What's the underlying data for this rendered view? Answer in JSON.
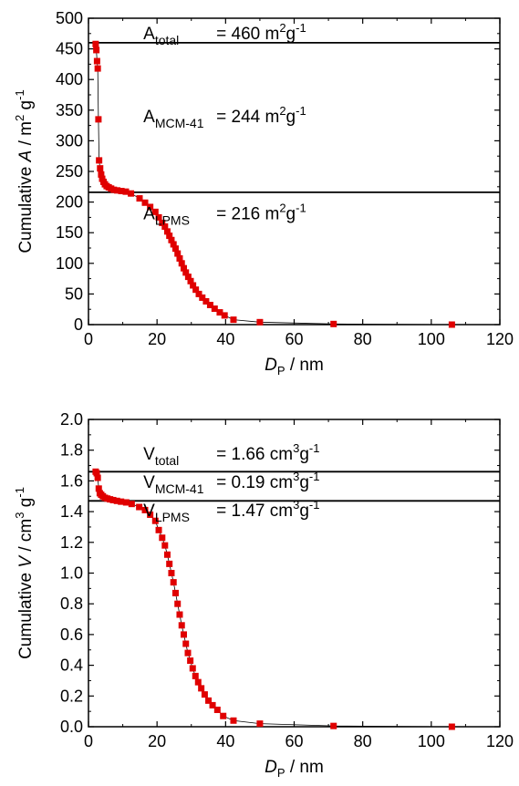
{
  "chart_data": [
    {
      "type": "scatter",
      "xlabel": {
        "var": "D",
        "sub": "P",
        "unit": " / nm"
      },
      "ylabel": {
        "prefix": "Cumulative ",
        "var": "A",
        "unit": " / m",
        "sup": "2",
        "tail": " g",
        "sup2": "-1"
      },
      "xlim": [
        0,
        120
      ],
      "ylim": [
        0,
        500
      ],
      "xticks": [
        0,
        20,
        40,
        60,
        80,
        100,
        120
      ],
      "yticks": [
        0,
        50,
        100,
        150,
        200,
        250,
        300,
        350,
        400,
        450,
        500
      ],
      "marker_color": "#e00000",
      "line_color": "#000000",
      "hlines": [
        460,
        216
      ],
      "annotations": [
        {
          "main": "A",
          "sub": "total",
          "value": "= 460 m",
          "sup": "2",
          "unit": "g",
          "sup2": "-1",
          "x": 16,
          "y": 466
        },
        {
          "main": "A",
          "sub": "MCM-41",
          "value": "= 244 m",
          "sup": "2",
          "unit": "g",
          "sup2": "-1",
          "x": 16,
          "y": 330
        },
        {
          "main": "A",
          "sub": "LPMS",
          "value": "= 216 m",
          "sup": "2",
          "unit": "g",
          "sup2": "-1",
          "x": 16,
          "y": 172
        }
      ],
      "x": [
        2.1,
        2.3,
        2.5,
        2.7,
        2.9,
        3.1,
        3.4,
        3.7,
        4.0,
        4.4,
        4.8,
        5.3,
        5.9,
        6.6,
        7.4,
        8.4,
        9.6,
        10.9,
        12.4,
        14.9,
        16.5,
        18.0,
        19.5,
        20.5,
        21.5,
        22.3,
        23.0,
        23.6,
        24.2,
        24.8,
        25.4,
        26.0,
        26.6,
        27.2,
        27.8,
        28.4,
        29.1,
        29.8,
        30.5,
        31.3,
        32.2,
        33.2,
        34.3,
        35.5,
        36.8,
        38.3,
        39.7,
        42.3,
        50.0,
        71.5,
        106.0
      ],
      "y": [
        458,
        448,
        430,
        418,
        335,
        268,
        255,
        245,
        238,
        233,
        229,
        226,
        224,
        222,
        220,
        219,
        218,
        217,
        214,
        206,
        199,
        192,
        184,
        175,
        166,
        160,
        152,
        145,
        138,
        131,
        124,
        116,
        108,
        100,
        92,
        85,
        78,
        71,
        64,
        57,
        50,
        44,
        38,
        32,
        26,
        20,
        15,
        8,
        4,
        1,
        0
      ]
    },
    {
      "type": "scatter",
      "xlabel": {
        "var": "D",
        "sub": "P",
        "unit": " / nm"
      },
      "ylabel": {
        "prefix": "Cumulative ",
        "var": "V",
        "unit": " / cm",
        "sup": "3",
        "tail": " g",
        "sup2": "-1"
      },
      "xlim": [
        0,
        120
      ],
      "ylim": [
        0,
        2.0
      ],
      "xticks": [
        0,
        20,
        40,
        60,
        80,
        100,
        120
      ],
      "yticks": [
        0.0,
        0.2,
        0.4,
        0.6,
        0.8,
        1.0,
        1.2,
        1.4,
        1.6,
        1.8,
        2.0
      ],
      "ytick_labels": [
        "0.0",
        "0.2",
        "0.4",
        "0.6",
        "0.8",
        "1.0",
        "1.2",
        "1.4",
        "1.6",
        "1.8",
        "2.0"
      ],
      "marker_color": "#e00000",
      "line_color": "#000000",
      "hlines": [
        1.66,
        1.47
      ],
      "annotations": [
        {
          "main": "V",
          "sub": "total",
          "value": "= 1.66 cm",
          "sup": "3",
          "unit": "g",
          "sup2": "-1",
          "x": 16,
          "y": 1.74
        },
        {
          "main": "V",
          "sub": "MCM-41",
          "value": "= 0.19 cm",
          "sup": "3",
          "unit": "g",
          "sup2": "-1",
          "x": 16,
          "y": 1.555
        },
        {
          "main": "V",
          "sub": "LPMS",
          "value": "= 1.47 cm",
          "sup": "3",
          "unit": "g",
          "sup2": "-1",
          "x": 16,
          "y": 1.37
        }
      ],
      "x": [
        2.1,
        2.4,
        2.7,
        3.0,
        3.3,
        3.7,
        4.2,
        4.8,
        5.5,
        6.3,
        7.2,
        8.3,
        9.5,
        11.0,
        12.6,
        14.8,
        16.5,
        18.0,
        19.5,
        20.5,
        21.5,
        22.3,
        23.0,
        23.6,
        24.2,
        24.8,
        25.4,
        26.0,
        26.6,
        27.2,
        27.8,
        28.4,
        29.0,
        29.7,
        30.4,
        31.2,
        32.0,
        32.9,
        33.9,
        35.0,
        36.2,
        37.6,
        39.3,
        42.3,
        50.0,
        71.5,
        106.0
      ],
      "y": [
        1.66,
        1.65,
        1.62,
        1.55,
        1.52,
        1.51,
        1.5,
        1.49,
        1.485,
        1.48,
        1.475,
        1.47,
        1.465,
        1.46,
        1.45,
        1.43,
        1.41,
        1.38,
        1.34,
        1.28,
        1.23,
        1.18,
        1.12,
        1.06,
        1.0,
        0.94,
        0.87,
        0.8,
        0.73,
        0.66,
        0.6,
        0.54,
        0.48,
        0.43,
        0.38,
        0.33,
        0.29,
        0.25,
        0.21,
        0.17,
        0.14,
        0.11,
        0.07,
        0.04,
        0.02,
        0.005,
        0.0
      ]
    }
  ]
}
